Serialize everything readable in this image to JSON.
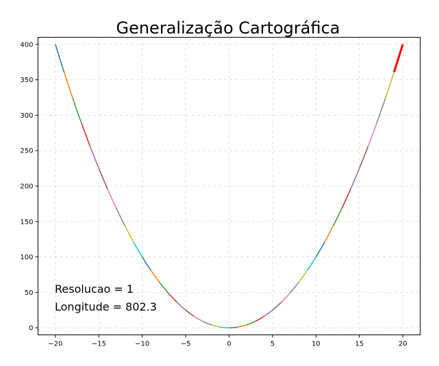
{
  "chart_data": {
    "type": "line",
    "title": "Generalização Cartográfica",
    "xlabel": "",
    "ylabel": "",
    "xlim": [
      -22,
      22
    ],
    "ylim": [
      -10,
      410
    ],
    "grid": true,
    "xticks": [
      -20,
      -15,
      -10,
      -5,
      0,
      5,
      10,
      15,
      20
    ],
    "xtick_labels": [
      "−20",
      "−15",
      "−10",
      "−5",
      "0",
      "5",
      "10",
      "15",
      "20"
    ],
    "yticks": [
      0,
      50,
      100,
      150,
      200,
      250,
      300,
      350,
      400
    ],
    "ytick_labels": [
      "0",
      "50",
      "100",
      "150",
      "200",
      "250",
      "300",
      "350",
      "400"
    ],
    "function": "y = x^2",
    "x": [
      -20,
      -19,
      -18,
      -17,
      -16,
      -15,
      -14,
      -13,
      -12,
      -11,
      -10,
      -9,
      -8,
      -7,
      -6,
      -5,
      -4,
      -3,
      -2,
      -1,
      0,
      1,
      2,
      3,
      4,
      5,
      6,
      7,
      8,
      9,
      10,
      11,
      12,
      13,
      14,
      15,
      16,
      17,
      18,
      19,
      20
    ],
    "y": [
      400,
      361,
      324,
      289,
      256,
      225,
      196,
      169,
      144,
      121,
      100,
      81,
      64,
      49,
      36,
      25,
      16,
      9,
      4,
      1,
      0,
      1,
      4,
      9,
      16,
      25,
      36,
      49,
      64,
      81,
      100,
      121,
      144,
      169,
      196,
      225,
      256,
      289,
      324,
      361,
      400
    ],
    "segment_colors": [
      "#1f77b4",
      "#ff7f0e",
      "#2ca02c",
      "#d62728",
      "#9467bd",
      "#8c564b",
      "#e377c2",
      "#7f7f7f",
      "#bcbd22",
      "#17becf"
    ],
    "highlight_segment": {
      "x": [
        19,
        20
      ],
      "y": [
        361,
        400
      ],
      "color": "#ff0000"
    },
    "annotations": [
      "Resolucao = 1",
      "Longitude = 802.3"
    ]
  }
}
